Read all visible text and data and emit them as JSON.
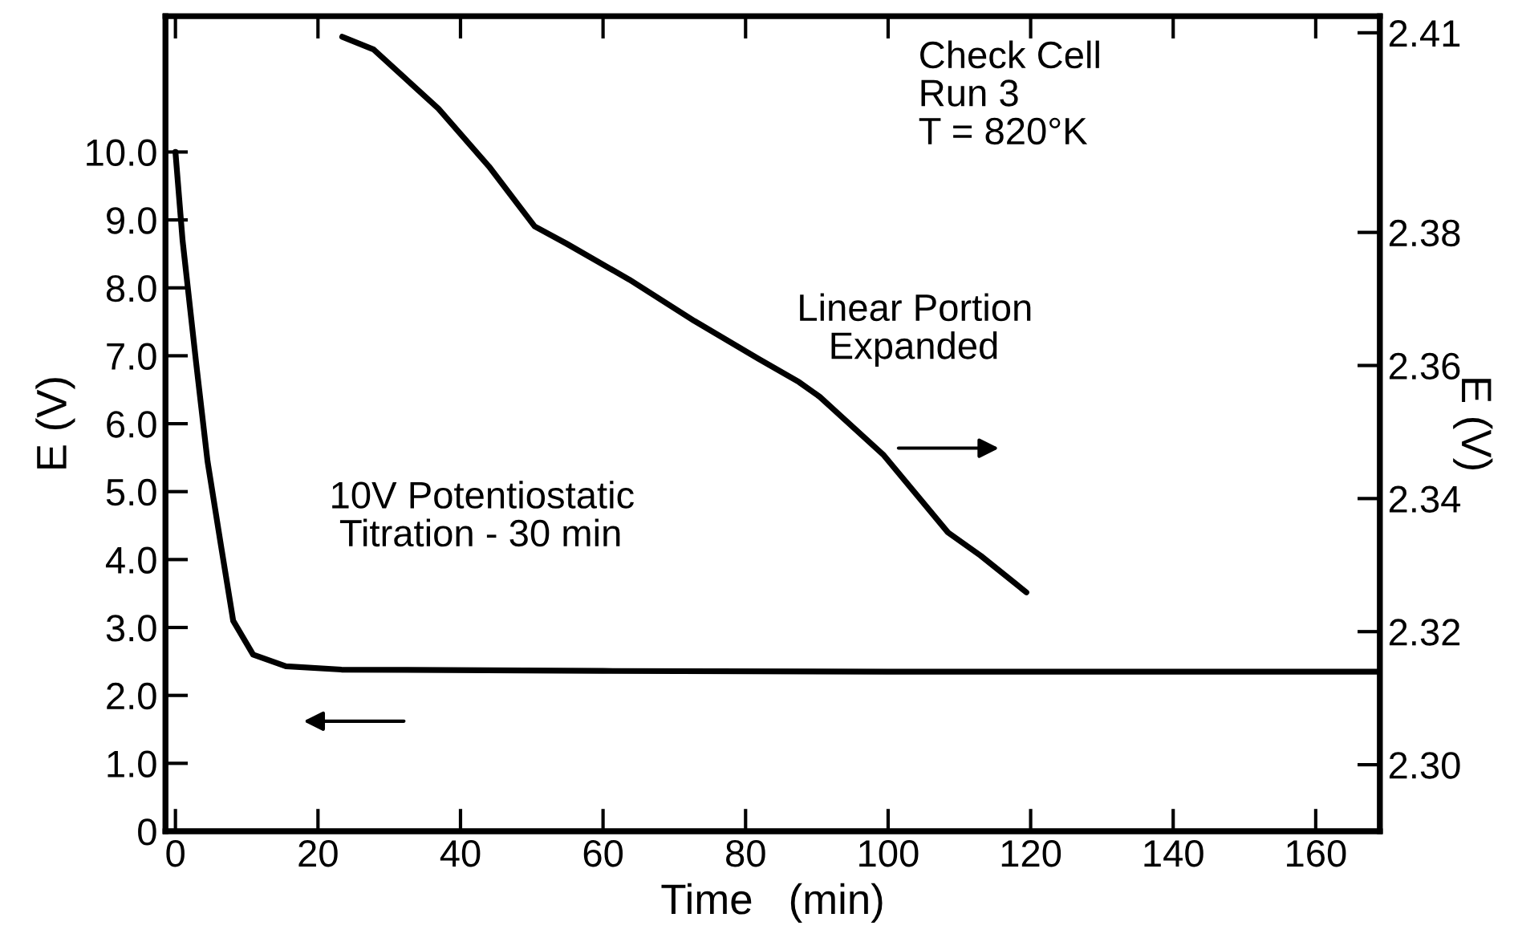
{
  "chart_data": {
    "type": "line",
    "xlabel": "Time   (min)",
    "ylabel": "E (V)",
    "y2label": "E (V)",
    "xlim": [
      -1.4,
      169
    ],
    "xticks": [
      0,
      20,
      40,
      60,
      80,
      100,
      120,
      140,
      160
    ],
    "ylim": [
      0,
      12
    ],
    "yticks": [
      {
        "value": 0,
        "label": "0"
      },
      {
        "value": 1,
        "label": "1.0"
      },
      {
        "value": 2,
        "label": "2.0"
      },
      {
        "value": 3,
        "label": "3.0"
      },
      {
        "value": 4,
        "label": "4.0"
      },
      {
        "value": 5,
        "label": "5.0"
      },
      {
        "value": 6,
        "label": "6.0"
      },
      {
        "value": 7,
        "label": "7.0"
      },
      {
        "value": 8,
        "label": "8.0"
      },
      {
        "value": 9,
        "label": "9.0"
      },
      {
        "value": 10,
        "label": "10.0"
      }
    ],
    "y2lim": [
      2.29,
      2.4125
    ],
    "y2ticks": [
      {
        "value": 2.3,
        "label": "2.30"
      },
      {
        "value": 2.32,
        "label": "2.32"
      },
      {
        "value": 2.34,
        "label": "2.34"
      },
      {
        "value": 2.36,
        "label": "2.36"
      },
      {
        "value": 2.38,
        "label": "2.38"
      },
      2.41
    ],
    "grid": false,
    "legend": false,
    "marker": "none",
    "line_style": "solid",
    "series": [
      {
        "color": "#000000",
        "x": [
          0,
          1.0,
          2.9,
          4.5,
          6.4,
          8.1,
          10.9,
          15.5,
          23.3,
          60,
          100,
          169
        ],
        "values": [
          10.0,
          8.7,
          6.9,
          5.45,
          4.2,
          3.1,
          2.6,
          2.43,
          2.38,
          2.36,
          2.35,
          2.35
        ]
      },
      {
        "color": "#000000",
        "axis": "y2",
        "x": [
          23.4,
          27.8,
          36.9,
          44.0,
          50.4,
          54.9,
          63.7,
          72.8,
          81.8,
          87.5,
          90.4,
          99.4,
          108.4,
          113.0,
          119.4
        ],
        "values": [
          2.4094,
          2.4075,
          2.3986,
          2.3899,
          2.3809,
          2.3783,
          2.3729,
          2.3667,
          2.361,
          2.3575,
          2.3553,
          2.3465,
          2.3349,
          2.3314,
          2.3259
        ]
      }
    ],
    "annotations": [
      "Check Cell\nRun 3\nT = 820°K",
      "Linear Portion\n   Expanded",
      "10V Potentiostatic\n Titration - 30 min"
    ]
  }
}
